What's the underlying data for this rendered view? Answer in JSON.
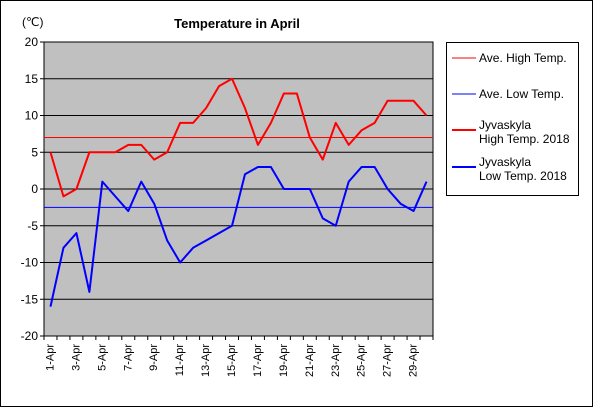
{
  "chart_data": {
    "type": "line",
    "title": "Temperature in April",
    "unit_label": "(℃)",
    "xlabel": "",
    "ylabel": "",
    "ylim": [
      -20,
      20
    ],
    "yticks": [
      20,
      15,
      10,
      5,
      0,
      -5,
      -10,
      -15,
      -20
    ],
    "grid": true,
    "plot_background": "#c0c0c0",
    "legend_position": "right",
    "x": [
      "1-Apr",
      "2-Apr",
      "3-Apr",
      "4-Apr",
      "5-Apr",
      "6-Apr",
      "7-Apr",
      "8-Apr",
      "9-Apr",
      "10-Apr",
      "11-Apr",
      "12-Apr",
      "13-Apr",
      "14-Apr",
      "15-Apr",
      "16-Apr",
      "17-Apr",
      "18-Apr",
      "19-Apr",
      "20-Apr",
      "21-Apr",
      "22-Apr",
      "23-Apr",
      "24-Apr",
      "25-Apr",
      "26-Apr",
      "27-Apr",
      "28-Apr",
      "29-Apr",
      "30-Apr"
    ],
    "xtick_labels": [
      "1-Apr",
      "3-Apr",
      "5-Apr",
      "7-Apr",
      "9-Apr",
      "11-Apr",
      "13-Apr",
      "15-Apr",
      "17-Apr",
      "19-Apr",
      "21-Apr",
      "23-Apr",
      "25-Apr",
      "27-Apr",
      "29-Apr"
    ],
    "series": [
      {
        "name": "Ave. High Temp.",
        "color": "#ff0000",
        "thin": true,
        "values": [
          7,
          7,
          7,
          7,
          7,
          7,
          7,
          7,
          7,
          7,
          7,
          7,
          7,
          7,
          7,
          7,
          7,
          7,
          7,
          7,
          7,
          7,
          7,
          7,
          7,
          7,
          7,
          7,
          7,
          7
        ]
      },
      {
        "name": "Ave. Low Temp.",
        "color": "#0000ff",
        "thin": true,
        "values": [
          -2.5,
          -2.5,
          -2.5,
          -2.5,
          -2.5,
          -2.5,
          -2.5,
          -2.5,
          -2.5,
          -2.5,
          -2.5,
          -2.5,
          -2.5,
          -2.5,
          -2.5,
          -2.5,
          -2.5,
          -2.5,
          -2.5,
          -2.5,
          -2.5,
          -2.5,
          -2.5,
          -2.5,
          -2.5,
          -2.5,
          -2.5,
          -2.5,
          -2.5,
          -2.5
        ]
      },
      {
        "name": "Jyvaskyla\nHigh Temp. 2018",
        "color": "#ff0000",
        "thin": false,
        "values": [
          5,
          -1,
          0,
          5,
          5,
          5,
          6,
          6,
          4,
          5,
          9,
          9,
          11,
          14,
          15,
          11,
          6,
          9,
          13,
          13,
          7,
          4,
          9,
          6,
          8,
          9,
          12,
          12,
          12,
          10
        ]
      },
      {
        "name": "Jyvaskyla\nLow Temp. 2018",
        "color": "#0000ff",
        "thin": false,
        "values": [
          -16,
          -8,
          -6,
          -14,
          1,
          -1,
          -3,
          1,
          -2,
          -7,
          -10,
          -8,
          -7,
          -6,
          -5,
          2,
          3,
          3,
          0,
          0,
          0,
          -4,
          -5,
          1,
          3,
          3,
          0,
          -2,
          -3,
          1
        ]
      }
    ]
  }
}
